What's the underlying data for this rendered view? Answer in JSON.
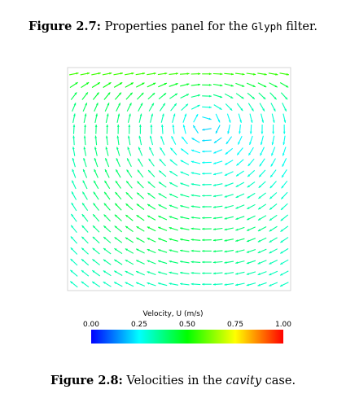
{
  "figure_top": {
    "label": "Figure 2.7:",
    "text_before": "Properties panel for the",
    "code": "Glyph",
    "text_after": "filter."
  },
  "figure_bottom": {
    "label": "Figure 2.8:",
    "text_before": "Velocities in the",
    "italic": "cavity",
    "text_after": "case."
  },
  "colorbar": {
    "title": "Velocity, U (m/s)",
    "ticks": [
      "0.00",
      "0.25",
      "0.50",
      "0.75",
      "1.00"
    ],
    "colors": [
      "#0000ff",
      "#00ffff",
      "#00ff00",
      "#ffff00",
      "#ff0000"
    ]
  },
  "colors": {
    "frame": "#cccccc"
  }
}
